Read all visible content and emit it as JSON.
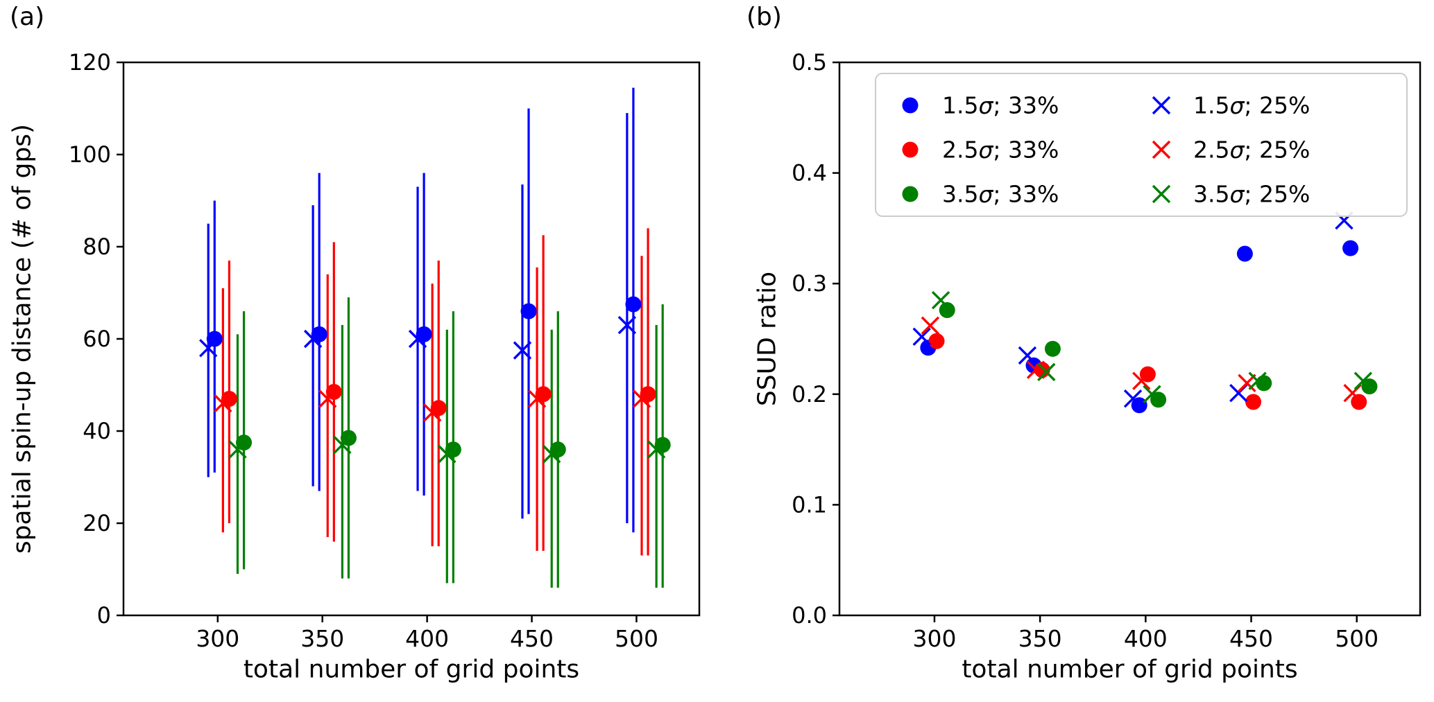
{
  "figure": {
    "background": "#ffffff",
    "colors": {
      "blue": "#0000ff",
      "red": "#ff0000",
      "green": "#008000",
      "axis": "#000000",
      "legend_border": "#cccccc"
    }
  },
  "chart_data": [
    {
      "id": "panel-a",
      "panel_label": "(a)",
      "type": "scatter",
      "title": "",
      "xlabel": "total number of grid points",
      "ylabel": "spatial spin-up distance (# of gps)",
      "xlim": [
        255,
        530
      ],
      "ylim": [
        0,
        120
      ],
      "xticks": [
        300,
        350,
        400,
        450,
        500
      ],
      "yticks": [
        0,
        20,
        40,
        60,
        80,
        100,
        120
      ],
      "ytick_labels": [
        "0",
        "20",
        "40",
        "60",
        "80",
        "100",
        "120"
      ],
      "grid": false,
      "x": [
        300,
        350,
        400,
        450,
        500
      ],
      "series": [
        {
          "name": "1.5σ; 33%",
          "marker": "circle",
          "color": "#0000ff",
          "offset": -1.5,
          "y": [
            60,
            61,
            61,
            66,
            67.5
          ],
          "err_low": [
            31,
            27,
            26,
            22,
            18
          ],
          "err_high": [
            90,
            96,
            96,
            110,
            114.5
          ]
        },
        {
          "name": "2.5σ; 33%",
          "marker": "circle",
          "color": "#ff0000",
          "offset": 5.5,
          "y": [
            47,
            48.5,
            45,
            48,
            48
          ],
          "err_low": [
            20,
            16,
            15,
            14,
            13
          ],
          "err_high": [
            77,
            81,
            77,
            82.5,
            84
          ]
        },
        {
          "name": "3.5σ; 33%",
          "marker": "circle",
          "color": "#008000",
          "offset": 12.5,
          "y": [
            37.5,
            38.5,
            36,
            36,
            37
          ],
          "err_low": [
            10,
            8,
            7,
            6,
            6
          ],
          "err_high": [
            66,
            69,
            66,
            66,
            67.5
          ]
        },
        {
          "name": "1.5σ; 25%",
          "marker": "x",
          "color": "#0000ff",
          "offset": -4.5,
          "y": [
            58,
            60,
            60,
            57.5,
            63
          ],
          "err_low": [
            30,
            28,
            27,
            21,
            20
          ],
          "err_high": [
            85,
            89,
            93,
            93.5,
            109
          ]
        },
        {
          "name": "2.5σ; 25%",
          "marker": "x",
          "color": "#ff0000",
          "offset": 2.5,
          "y": [
            46,
            47,
            44,
            47,
            47
          ],
          "err_low": [
            18,
            17,
            15,
            14,
            13
          ],
          "err_high": [
            71,
            74,
            72,
            75.5,
            78
          ]
        },
        {
          "name": "3.5σ; 25%",
          "marker": "x",
          "color": "#008000",
          "offset": 9.5,
          "y": [
            36,
            37,
            35,
            35,
            36
          ],
          "err_low": [
            9,
            8,
            7,
            6,
            6
          ],
          "err_high": [
            61,
            63,
            62,
            62,
            63
          ]
        }
      ]
    },
    {
      "id": "panel-b",
      "panel_label": "(b)",
      "type": "scatter",
      "title": "",
      "xlabel": "total number of grid points",
      "ylabel": "SSUD ratio",
      "xlim": [
        255,
        530
      ],
      "ylim": [
        0,
        0.5
      ],
      "xticks": [
        300,
        350,
        400,
        450,
        500
      ],
      "yticks": [
        0,
        0.1,
        0.2,
        0.3,
        0.4,
        0.5
      ],
      "ytick_labels": [
        "0.0",
        "0.1",
        "0.2",
        "0.3",
        "0.4",
        "0.5"
      ],
      "grid": false,
      "x": [
        300,
        350,
        400,
        450,
        500
      ],
      "legend": {
        "position": "upper area inside plot, two columns",
        "entries": [
          {
            "label": "1.5σ; 33%",
            "marker": "circle",
            "color": "#0000ff"
          },
          {
            "label": "2.5σ; 33%",
            "marker": "circle",
            "color": "#ff0000"
          },
          {
            "label": "3.5σ; 33%",
            "marker": "circle",
            "color": "#008000"
          },
          {
            "label": "1.5σ; 25%",
            "marker": "x",
            "color": "#0000ff"
          },
          {
            "label": "2.5σ; 25%",
            "marker": "x",
            "color": "#ff0000"
          },
          {
            "label": "3.5σ; 25%",
            "marker": "x",
            "color": "#008000"
          }
        ]
      },
      "series": [
        {
          "name": "1.5σ; 33%",
          "marker": "circle",
          "color": "#0000ff",
          "offset": -3,
          "y": [
            0.242,
            0.226,
            0.19,
            0.327,
            0.332
          ]
        },
        {
          "name": "2.5σ; 33%",
          "marker": "circle",
          "color": "#ff0000",
          "offset": 1,
          "y": [
            0.248,
            0.222,
            0.218,
            0.193,
            0.193
          ]
        },
        {
          "name": "3.5σ; 33%",
          "marker": "circle",
          "color": "#008000",
          "offset": 6,
          "y": [
            0.276,
            0.241,
            0.195,
            0.21,
            0.207
          ]
        },
        {
          "name": "1.5σ; 25%",
          "marker": "x",
          "color": "#0000ff",
          "offset": -6,
          "y": [
            0.252,
            0.235,
            0.196,
            0.201,
            0.357
          ]
        },
        {
          "name": "2.5σ; 25%",
          "marker": "x",
          "color": "#ff0000",
          "offset": -2,
          "y": [
            0.262,
            0.222,
            0.212,
            0.21,
            0.201
          ]
        },
        {
          "name": "3.5σ; 25%",
          "marker": "x",
          "color": "#008000",
          "offset": 3,
          "y": [
            0.285,
            0.22,
            0.2,
            0.212,
            0.212
          ]
        }
      ]
    }
  ]
}
